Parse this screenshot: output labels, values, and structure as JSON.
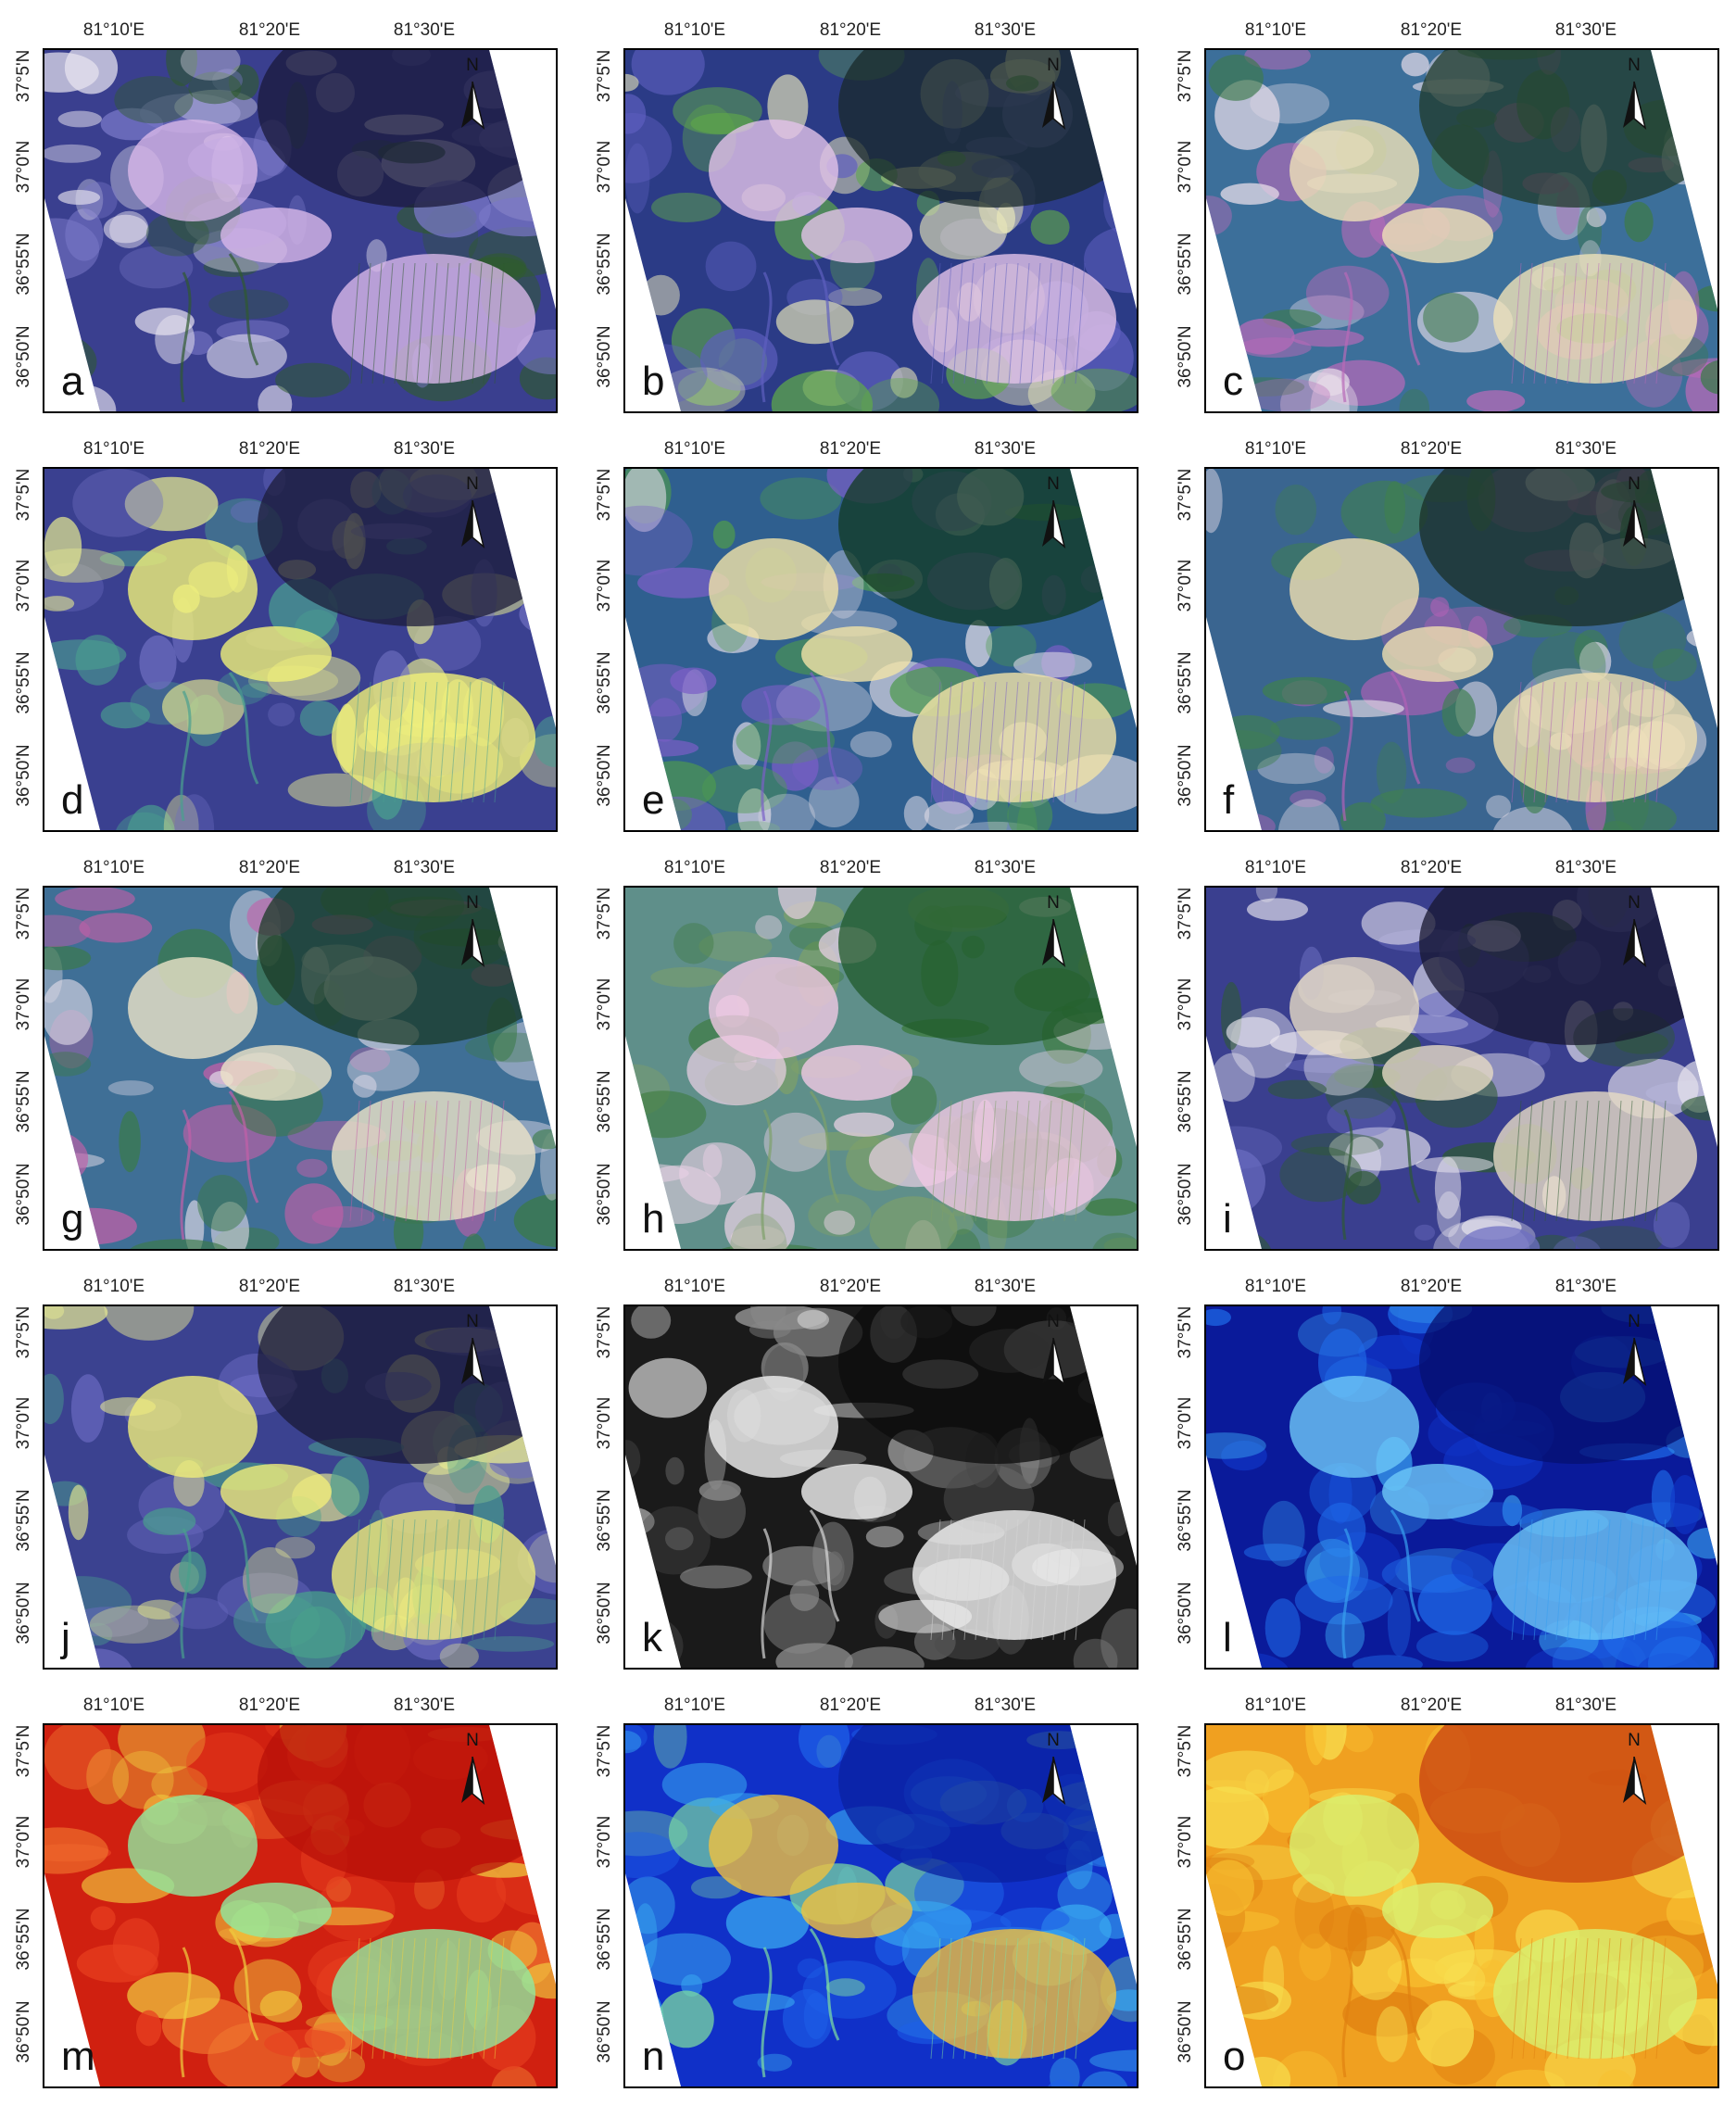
{
  "figure": {
    "lon_ticks": [
      "81°10'E",
      "81°20'E",
      "81°30'E"
    ],
    "lat_ticks": [
      "37°5'N",
      "37°0'N",
      "36°55'N",
      "36°50'N"
    ],
    "north_label": "N",
    "icons": {
      "north_arrow": "north-arrow-icon"
    },
    "panels": [
      {
        "letter": "a",
        "palette": "rgb-composite",
        "colors": [
          "#3a3f8f",
          "#7a78c8",
          "#e8e4f0",
          "#2f5a2f",
          "#1a1a3a",
          "#d8b8e8"
        ]
      },
      {
        "letter": "b",
        "palette": "rgb-composite",
        "colors": [
          "#2b3b86",
          "#5fa84a",
          "#e9e7b9",
          "#5e5fbf",
          "#1a2a2a",
          "#e2c3e9"
        ]
      },
      {
        "letter": "c",
        "palette": "rgb-composite",
        "colors": [
          "#3c6f9a",
          "#3d7a4a",
          "#e6dce8",
          "#b86ab8",
          "#1f3a2a",
          "#efe2b8"
        ]
      },
      {
        "letter": "d",
        "palette": "rgb-composite",
        "colors": [
          "#3a4090",
          "#6d6dc0",
          "#e6ea8f",
          "#4aa08f",
          "#1c1c3a",
          "#f0f078"
        ]
      },
      {
        "letter": "e",
        "palette": "rgb-composite",
        "colors": [
          "#2f5f8f",
          "#4e9a4e",
          "#dcd8e4",
          "#7b5fc7",
          "#123a22",
          "#f2e3a8"
        ]
      },
      {
        "letter": "f",
        "palette": "rgb-composite",
        "colors": [
          "#3a6590",
          "#3f7f50",
          "#e2dbe6",
          "#b061b6",
          "#1a2f26",
          "#f0e0b0"
        ]
      },
      {
        "letter": "g",
        "palette": "rgb-composite",
        "colors": [
          "#3f6f96",
          "#3b7a47",
          "#e4dde9",
          "#c35fa8",
          "#1a3a25",
          "#ece3c8"
        ]
      },
      {
        "letter": "h",
        "palette": "rgb-composite",
        "colors": [
          "#5f8f8a",
          "#3b7a3b",
          "#ecd2e6",
          "#7ea06a",
          "#1f5a2a",
          "#f0c8e4"
        ]
      },
      {
        "letter": "i",
        "palette": "rgb-composite",
        "colors": [
          "#3a3f8f",
          "#6d6fc2",
          "#e9e6ef",
          "#2e5a33",
          "#17172f",
          "#e6dbc4"
        ]
      },
      {
        "letter": "j",
        "palette": "rgb-composite",
        "colors": [
          "#3b4290",
          "#6a6ac0",
          "#e8eb92",
          "#49a08c",
          "#1a1a36",
          "#f0ee7a"
        ]
      },
      {
        "letter": "k",
        "palette": "grayscale",
        "colors": [
          "#1a1a1a",
          "#4a4a4a",
          "#8a8a8a",
          "#d8d8d8",
          "#0c0c0c",
          "#f2f2f2"
        ]
      },
      {
        "letter": "l",
        "palette": "blues",
        "colors": [
          "#0a1a9a",
          "#1036c8",
          "#1f6ae8",
          "#38a0f0",
          "#061070",
          "#6ec8f8"
        ]
      },
      {
        "letter": "m",
        "palette": "red-yellow",
        "colors": [
          "#d02010",
          "#e84020",
          "#f07830",
          "#f0d040",
          "#b81008",
          "#90e8a0"
        ]
      },
      {
        "letter": "n",
        "palette": "jet",
        "colors": [
          "#1030c8",
          "#1e60e8",
          "#38a8f0",
          "#80e0a0",
          "#0a20a0",
          "#f0c040"
        ]
      },
      {
        "letter": "o",
        "palette": "yellow-orange",
        "colors": [
          "#f0a020",
          "#f8c030",
          "#f8e050",
          "#e08010",
          "#c84010",
          "#d8f070"
        ]
      }
    ]
  }
}
